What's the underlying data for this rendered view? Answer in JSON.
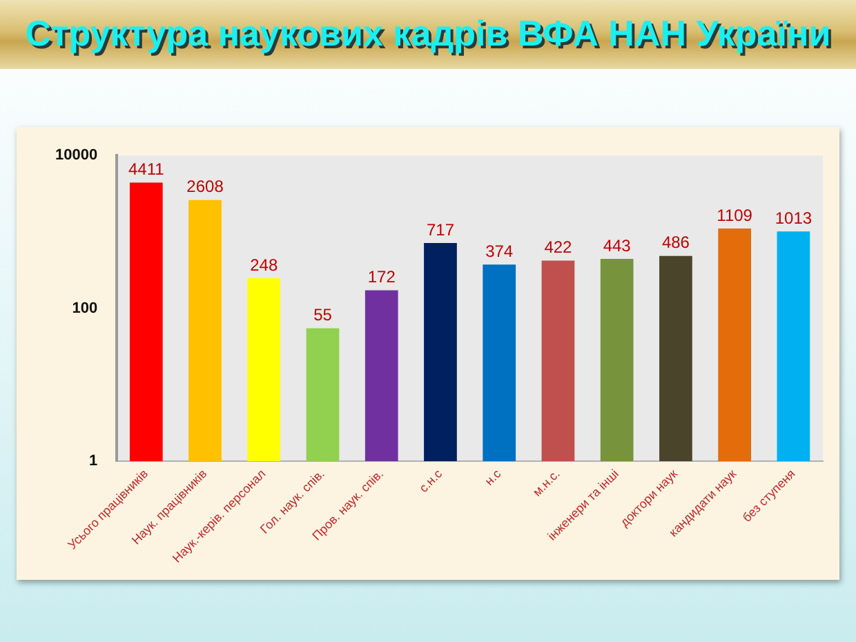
{
  "chart_data": {
    "type": "bar",
    "title": "Структура наукових кадрів ВФА НАН України",
    "categories": [
      "Усього працівників",
      "Наук. працівників",
      "Наук.-керів. персонал",
      "Гол. наук. спів.",
      "Пров. наук. спів.",
      "с.н.с",
      "н.с",
      "м.н.с.",
      "інженери та інші",
      "доктори наук",
      "кандидати наук",
      "без ступеня"
    ],
    "values": [
      4411,
      2608,
      248,
      55,
      172,
      717,
      374,
      422,
      443,
      486,
      1109,
      1013
    ],
    "colors": [
      "#ff0000",
      "#ffc000",
      "#ffff00",
      "#92d050",
      "#7030a0",
      "#002060",
      "#0070c0",
      "#c0504d",
      "#77933c",
      "#4a452a",
      "#e46c0a",
      "#00b0f0"
    ],
    "ylim": [
      1,
      10000
    ],
    "yticks": [
      1,
      100,
      10000
    ],
    "log": true,
    "data_labels": true
  }
}
